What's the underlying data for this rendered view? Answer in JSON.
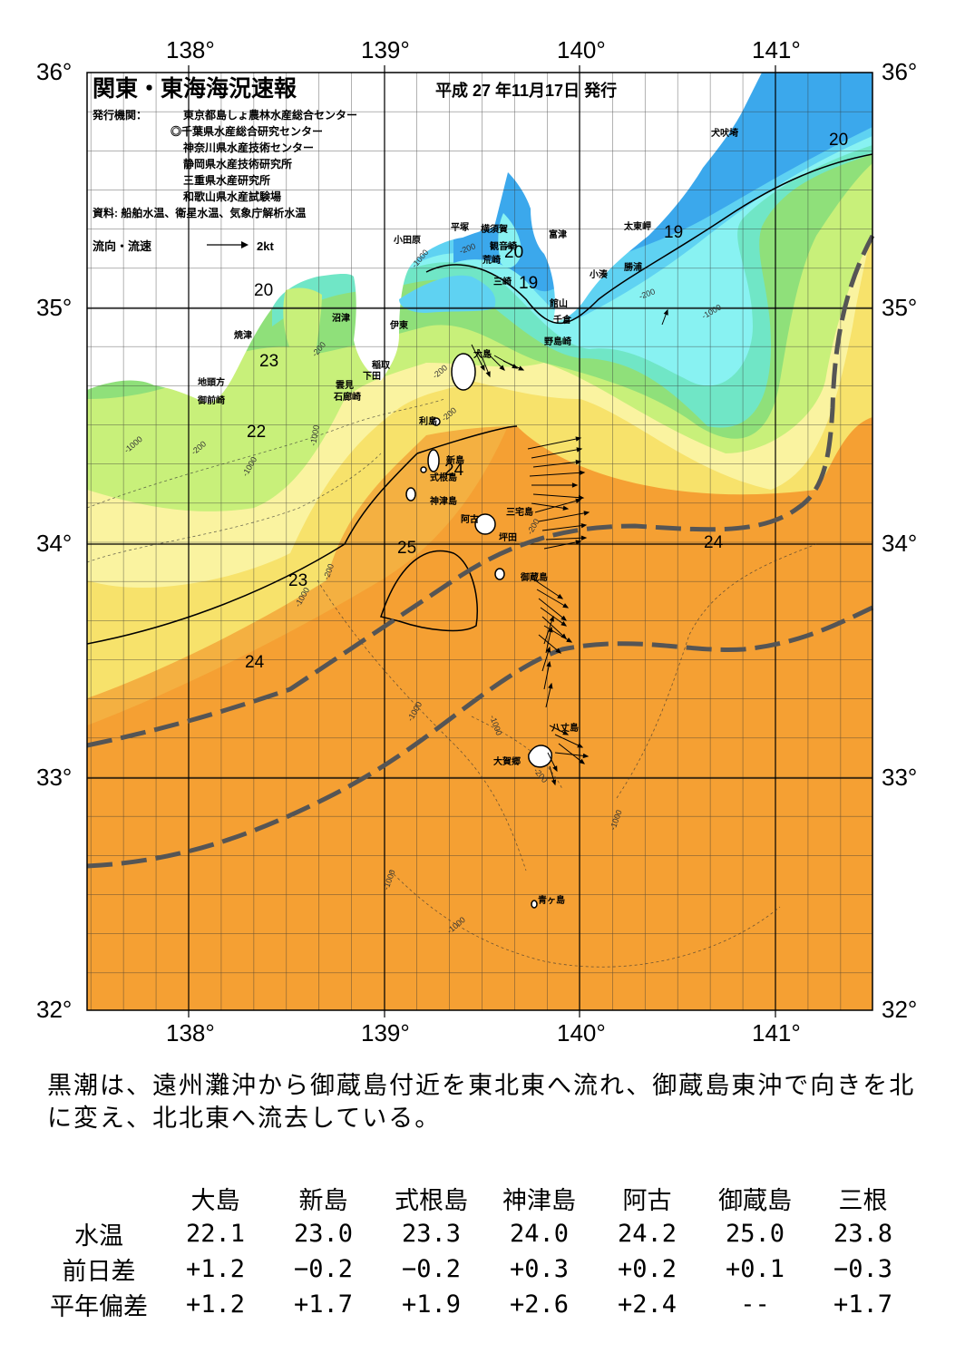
{
  "header": {
    "title": "関東・東海海況速報",
    "date": "平成 27 年11月17日 発行",
    "issuer_label": "発行機関：",
    "issuers": [
      "東京都島しょ農林水産総合センター",
      "◎千葉県水産総合研究センター",
      "神奈川県水産技術センター",
      "静岡県水産技術研究所",
      "三重県水産研究所",
      "和歌山県水産試験場"
    ],
    "sources": "資料: 船舶水温、衛星水温、気象庁解析水温",
    "legend_label": "流向・流速",
    "legend_value": "2kt"
  },
  "axes": {
    "lon_labels": [
      "138°",
      "139°",
      "140°",
      "141°"
    ],
    "lat_labels": [
      "36°",
      "35°",
      "34°",
      "33°",
      "32°"
    ]
  },
  "places": {
    "inubozaki": "犬吠埼",
    "taitomisaki": "太東岬",
    "katsuura": "勝浦",
    "kominato": "小湊",
    "tomiura": "富津",
    "yokosuka": "横須賀",
    "kannonzaki": "観音崎",
    "arasaki": "荒崎",
    "misaki": "三崎",
    "tateyama": "館山",
    "chikura": "千倉",
    "nojimazaki": "野島崎",
    "hiratsuka": "平塚",
    "odawara": "小田原",
    "numazu": "沼津",
    "ito": "伊東",
    "inatori": "稲取",
    "shimoda": "下田",
    "kumomi": "雲見",
    "irozaki": "石廊崎",
    "yaizu": "焼津",
    "jitokata": "地頭方",
    "omaezaki": "御前崎",
    "oshima": "大島",
    "toshima": "利島",
    "niijima": "新島",
    "shikinejima": "式根島",
    "kozushima": "神津島",
    "miyake": "三宅島",
    "ako": "阿古",
    "tsubota": "坪田",
    "mikurajima": "御蔵島",
    "hachijo": "八丈島",
    "okago": "大賀郷",
    "aogashima": "青ヶ島"
  },
  "isotherm_labels": {
    "t20a": "20",
    "t20b": "20",
    "t20c": "20",
    "t19a": "19",
    "t19b": "19",
    "t23a": "23",
    "t22": "22",
    "t24a": "24",
    "t25": "25",
    "t23b": "23",
    "t24b": "24",
    "t24c": "24"
  },
  "depth_labels": {
    "d1": "-200",
    "d2": "-1000",
    "d3": "-200",
    "d4": "-200",
    "d5": "-1000",
    "d6": "-200",
    "d7": "-1000",
    "d8": "-200",
    "d9": "-1000",
    "d10": "-200",
    "d11": "-1000",
    "d12": "-200",
    "d13": "-1000",
    "d14": "-1000",
    "d15": "-1000",
    "d16": "-1000",
    "d17": "-1000",
    "d18": "-200",
    "d19": "-200",
    "d20": "-1000"
  },
  "colors": {
    "warm_orange": "#F5A033",
    "mid_orange": "#F4B041",
    "yellow": "#F7E26B",
    "pale_yellow": "#FAF3A0",
    "light_green": "#C8F07A",
    "green": "#8FE07A",
    "teal": "#70E6C6",
    "cyan": "#88F2F2",
    "light_blue": "#5FD2F2",
    "blue": "#3BA8EC",
    "kuroshio_axis": "#555555",
    "land": "#FFFFFF"
  },
  "summary": "黒潮は、遠州灘沖から御蔵島付近を東北東へ流れ、御蔵島東沖で向きを北に変え、北北東へ流去している。",
  "table": {
    "columns": [
      "大島",
      "新島",
      "式根島",
      "神津島",
      "阿古",
      "御蔵島",
      "三根"
    ],
    "rows": [
      {
        "label": "水温",
        "values": [
          "22.1",
          "23.0",
          "23.3",
          "24.0",
          "24.2",
          "25.0",
          "23.8"
        ]
      },
      {
        "label": "前日差",
        "values": [
          "+1.2",
          "−0.2",
          "−0.2",
          "+0.3",
          "+0.2",
          "+0.1",
          "−0.3"
        ]
      },
      {
        "label": "平年偏差",
        "values": [
          "+1.2",
          "+1.7",
          "+1.9",
          "+2.6",
          "+2.4",
          "--",
          "+1.7"
        ]
      }
    ]
  }
}
